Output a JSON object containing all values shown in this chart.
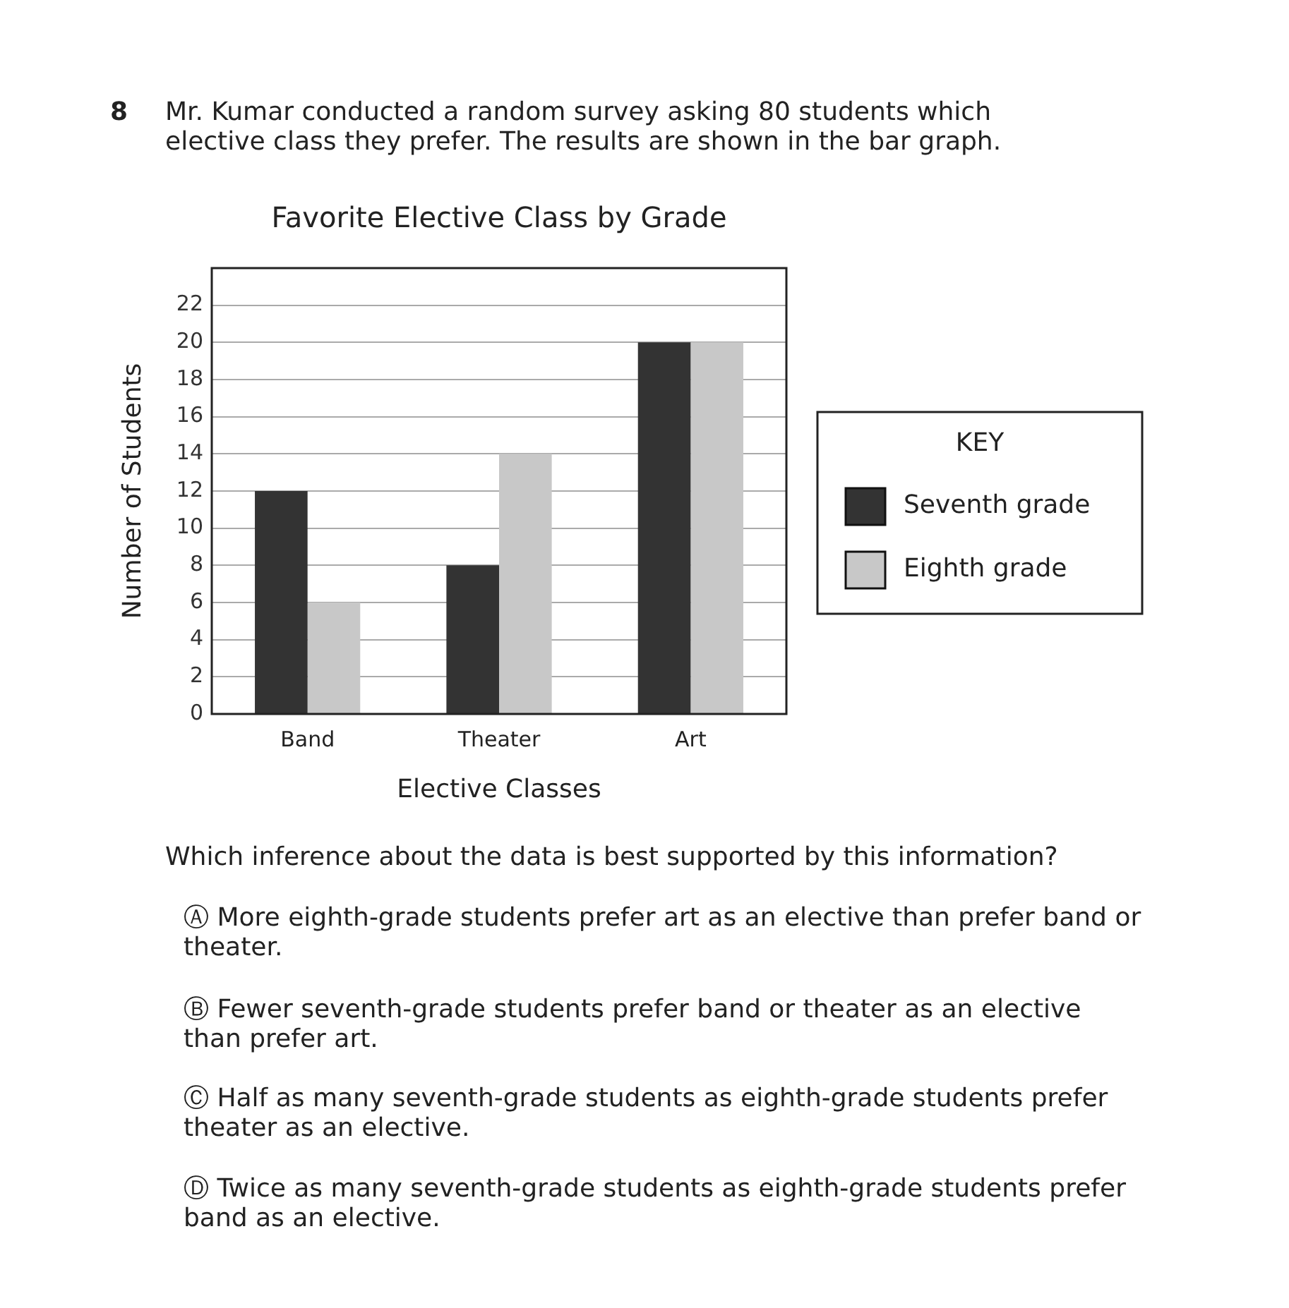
{
  "chart_data": {
    "type": "bar",
    "title": "Favorite Elective Class by Grade",
    "xlabel": "Elective Classes",
    "ylabel": "Number of Students",
    "legend_title": "KEY",
    "categories": [
      "Band",
      "Theater",
      "Art"
    ],
    "series": [
      {
        "name": "Seventh grade",
        "color": "#333333",
        "values": [
          12,
          8,
          20
        ]
      },
      {
        "name": "Eighth grade",
        "color": "#c8c8c8",
        "values": [
          6,
          14,
          20
        ]
      }
    ],
    "ylim": [
      0,
      24
    ],
    "yticks": [
      0,
      2,
      4,
      6,
      8,
      10,
      12,
      14,
      16,
      18,
      20,
      22
    ],
    "grid": "y",
    "legend": "right",
    "annotations": [
      "8",
      "Mr. Kumar conducted a random survey asking 80 students which elective class they prefer. The results are shown in the bar graph.",
      "Which inference about the data is best supported by this information?",
      "Ⓐ More eighth-grade students prefer art as an elective than prefer band or theater.",
      "Ⓑ Fewer seventh-grade students prefer band or theater as an elective than prefer art.",
      "Ⓒ Half as many seventh-grade students as eighth-grade students prefer theater as an elective.",
      "Ⓓ Twice as many seventh-grade students as eighth-grade students prefer band as an elective."
    ]
  }
}
